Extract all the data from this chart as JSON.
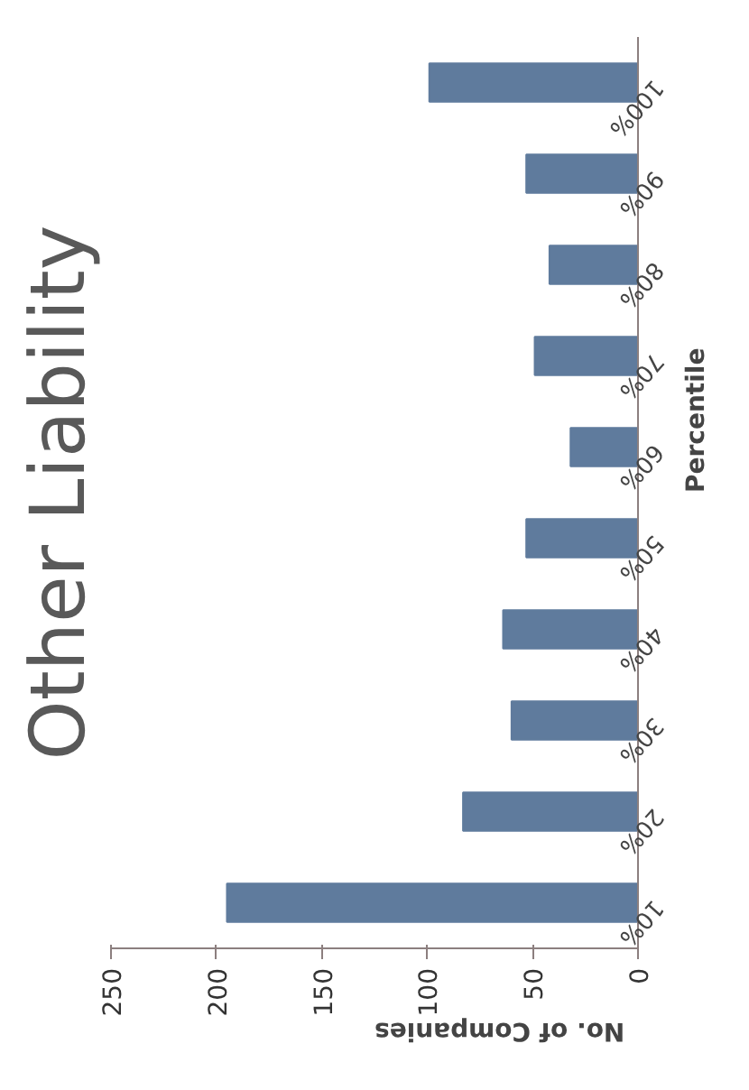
{
  "chart_data": {
    "type": "bar",
    "orientation": "horizontal",
    "title": "Other Liability",
    "xlabel": "No. of Companies",
    "ylabel": "Percentile",
    "categories": [
      "100%",
      "90%",
      "80%",
      "70%",
      "60%",
      "50%",
      "40%",
      "30%",
      "20%",
      "10%"
    ],
    "values": [
      99,
      53,
      42,
      49,
      32,
      53,
      64,
      60,
      83,
      195
    ],
    "color": "#5f7b9d",
    "xlim": [
      250,
      0
    ],
    "xticks": [
      0,
      50,
      100,
      150,
      200,
      250
    ],
    "grid": false
  }
}
